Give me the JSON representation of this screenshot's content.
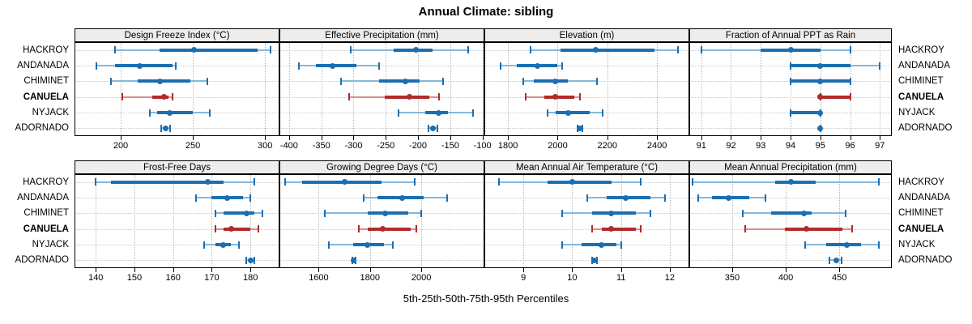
{
  "title": "Annual Climate: sibling",
  "subtitle": "5th-25th-50th-75th-95th Percentiles",
  "sites": [
    "HACKROY",
    "ANDANADA",
    "CHIMINET",
    "CANUELA",
    "NYJACK",
    "ADORNADO"
  ],
  "highlight_site": "CANUELA",
  "colors": {
    "blue_dark": "#1b6fb0",
    "blue_light": "#85b8dc",
    "red_dark": "#b22a2a",
    "red_light": "#d98f8f",
    "strip_bg": "#ededed",
    "grid": "#c9c9c9",
    "border": "#000000"
  },
  "chart_data": [
    {
      "type": "dotplot-percentiles",
      "panel": "Design Freeze Index (°C)",
      "row": 0,
      "col": 0,
      "xticks": [
        200,
        250,
        300
      ],
      "xdomain": [
        168,
        310
      ],
      "percentile_labels": [
        5,
        25,
        50,
        75,
        95
      ],
      "series": [
        {
          "name": "HACKROY",
          "percentiles": [
            196,
            227,
            251,
            295,
            304
          ]
        },
        {
          "name": "ANDANADA",
          "percentiles": [
            183,
            196,
            213,
            236,
            238
          ]
        },
        {
          "name": "CHIMINET",
          "percentiles": [
            193,
            212,
            227,
            248,
            260
          ]
        },
        {
          "name": "CANUELA",
          "percentiles": [
            201,
            222,
            230,
            233,
            236
          ]
        },
        {
          "name": "NYJACK",
          "percentiles": [
            220,
            225,
            234,
            250,
            262
          ]
        },
        {
          "name": "ADORNADO",
          "percentiles": [
            228,
            230,
            231,
            232,
            234
          ]
        }
      ]
    },
    {
      "type": "dotplot-percentiles",
      "panel": "Effective Precipitation (mm)",
      "row": 0,
      "col": 1,
      "xticks": [
        -400,
        -350,
        -300,
        -250,
        -200,
        -150,
        -100
      ],
      "xdomain": [
        -415,
        -97
      ],
      "percentile_labels": [
        5,
        25,
        50,
        75,
        95
      ],
      "series": [
        {
          "name": "HACKROY",
          "percentiles": [
            -304,
            -238,
            -203,
            -177,
            -122
          ]
        },
        {
          "name": "ANDANADA",
          "percentiles": [
            -385,
            -358,
            -333,
            -296,
            -261
          ]
        },
        {
          "name": "CHIMINET",
          "percentiles": [
            -319,
            -260,
            -220,
            -198,
            -161
          ]
        },
        {
          "name": "CANUELA",
          "percentiles": [
            -307,
            -251,
            -213,
            -183,
            -168
          ]
        },
        {
          "name": "NYJACK",
          "percentiles": [
            -230,
            -189,
            -168,
            -153,
            -114
          ]
        },
        {
          "name": "ADORNADO",
          "percentiles": [
            -184,
            -180,
            -177,
            -174,
            -170
          ]
        }
      ]
    },
    {
      "type": "dotplot-percentiles",
      "panel": "Elevation (m)",
      "row": 0,
      "col": 2,
      "xticks": [
        1800,
        2000,
        2200,
        2400
      ],
      "xdomain": [
        1705,
        2530
      ],
      "percentile_labels": [
        5,
        25,
        50,
        75,
        95
      ],
      "series": [
        {
          "name": "HACKROY",
          "percentiles": [
            1890,
            2013,
            2154,
            2389,
            2484
          ]
        },
        {
          "name": "ANDANADA",
          "percentiles": [
            1771,
            1835,
            1920,
            1998,
            2019
          ]
        },
        {
          "name": "CHIMINET",
          "percentiles": [
            1860,
            1905,
            1990,
            2040,
            2157
          ]
        },
        {
          "name": "CANUELA",
          "percentiles": [
            1870,
            1945,
            1991,
            2066,
            2090
          ]
        },
        {
          "name": "NYJACK",
          "percentiles": [
            1958,
            1991,
            2043,
            2130,
            2182
          ]
        },
        {
          "name": "ADORNADO",
          "percentiles": [
            2080,
            2086,
            2089,
            2092,
            2098
          ]
        }
      ]
    },
    {
      "type": "dotplot-percentiles",
      "panel": "Fraction of Annual PPT as Rain",
      "row": 0,
      "col": 3,
      "xticks": [
        91,
        92,
        93,
        94,
        95,
        96,
        97
      ],
      "xdomain": [
        90.6,
        97.4
      ],
      "percentile_labels": [
        5,
        25,
        50,
        75,
        95
      ],
      "series": [
        {
          "name": "HACKROY",
          "percentiles": [
            91,
            93,
            94,
            95,
            96
          ]
        },
        {
          "name": "ANDANADA",
          "percentiles": [
            94,
            94,
            95,
            96,
            97
          ]
        },
        {
          "name": "CHIMINET",
          "percentiles": [
            94,
            94,
            95,
            96,
            96
          ]
        },
        {
          "name": "CANUELA",
          "percentiles": [
            95,
            95,
            95,
            96,
            96
          ]
        },
        {
          "name": "NYJACK",
          "percentiles": [
            94,
            94,
            95,
            95,
            95
          ]
        },
        {
          "name": "ADORNADO",
          "percentiles": [
            95,
            95,
            95,
            95,
            95
          ]
        }
      ]
    },
    {
      "type": "dotplot-percentiles",
      "panel": "Frost-Free Days",
      "row": 1,
      "col": 0,
      "xticks": [
        140,
        150,
        160,
        170,
        180
      ],
      "xdomain": [
        134.5,
        187.5
      ],
      "percentile_labels": [
        5,
        25,
        50,
        75,
        95
      ],
      "series": [
        {
          "name": "HACKROY",
          "percentiles": [
            140,
            144,
            169,
            173,
            181
          ]
        },
        {
          "name": "ANDANADA",
          "percentiles": [
            166,
            170,
            174,
            178,
            180
          ]
        },
        {
          "name": "CHIMINET",
          "percentiles": [
            171,
            173,
            179,
            181,
            183
          ]
        },
        {
          "name": "CANUELA",
          "percentiles": [
            171,
            173,
            175,
            180,
            182
          ]
        },
        {
          "name": "NYJACK",
          "percentiles": [
            168,
            171,
            173,
            175,
            177
          ]
        },
        {
          "name": "ADORNADO",
          "percentiles": [
            179,
            180,
            180,
            180,
            181
          ]
        }
      ]
    },
    {
      "type": "dotplot-percentiles",
      "panel": "Growing Degree Days (°C)",
      "row": 1,
      "col": 1,
      "xticks": [
        1600,
        1800,
        2000
      ],
      "xdomain": [
        1447,
        2246
      ],
      "percentile_labels": [
        5,
        25,
        50,
        75,
        95
      ],
      "series": [
        {
          "name": "HACKROY",
          "percentiles": [
            1470,
            1535,
            1700,
            1845,
            1975
          ]
        },
        {
          "name": "ANDANADA",
          "percentiles": [
            1775,
            1830,
            1925,
            2010,
            2100
          ]
        },
        {
          "name": "CHIMINET",
          "percentiles": [
            1625,
            1790,
            1860,
            1950,
            2000
          ]
        },
        {
          "name": "CANUELA",
          "percentiles": [
            1755,
            1790,
            1850,
            1960,
            1980
          ]
        },
        {
          "name": "NYJACK",
          "percentiles": [
            1640,
            1735,
            1790,
            1855,
            1890
          ]
        },
        {
          "name": "ADORNADO",
          "percentiles": [
            1730,
            1735,
            1737,
            1740,
            1745
          ]
        }
      ]
    },
    {
      "type": "dotplot-percentiles",
      "panel": "Mean Annual Air Temperature (°C)",
      "row": 1,
      "col": 2,
      "xticks": [
        9,
        10,
        11,
        12
      ],
      "xdomain": [
        8.2,
        12.4
      ],
      "percentile_labels": [
        5,
        25,
        50,
        75,
        95
      ],
      "series": [
        {
          "name": "HACKROY",
          "percentiles": [
            8.5,
            9.5,
            10.0,
            10.8,
            11.4
          ]
        },
        {
          "name": "ANDANADA",
          "percentiles": [
            10.3,
            10.7,
            11.1,
            11.6,
            11.9
          ]
        },
        {
          "name": "CHIMINET",
          "percentiles": [
            9.8,
            10.4,
            10.8,
            11.3,
            11.6
          ]
        },
        {
          "name": "CANUELA",
          "percentiles": [
            10.4,
            10.6,
            10.8,
            11.3,
            11.4
          ]
        },
        {
          "name": "NYJACK",
          "percentiles": [
            9.8,
            10.2,
            10.6,
            10.9,
            11.0
          ]
        },
        {
          "name": "ADORNADO",
          "percentiles": [
            10.4,
            10.42,
            10.45,
            10.48,
            10.5
          ]
        }
      ]
    },
    {
      "type": "dotplot-percentiles",
      "panel": "Mean Annual Precipitation (mm)",
      "row": 1,
      "col": 3,
      "xticks": [
        350,
        400,
        450
      ],
      "xdomain": [
        310,
        499
      ],
      "percentile_labels": [
        5,
        25,
        50,
        75,
        95
      ],
      "series": [
        {
          "name": "HACKROY",
          "percentiles": [
            313,
            390,
            405,
            428,
            487
          ]
        },
        {
          "name": "ANDANADA",
          "percentiles": [
            318,
            331,
            347,
            366,
            381
          ]
        },
        {
          "name": "CHIMINET",
          "percentiles": [
            360,
            386,
            417,
            424,
            456
          ]
        },
        {
          "name": "CANUELA",
          "percentiles": [
            362,
            399,
            419,
            453,
            462
          ]
        },
        {
          "name": "NYJACK",
          "percentiles": [
            418,
            438,
            457,
            470,
            487
          ]
        },
        {
          "name": "ADORNADO",
          "percentiles": [
            441,
            445,
            447,
            449,
            452
          ]
        }
      ]
    }
  ]
}
